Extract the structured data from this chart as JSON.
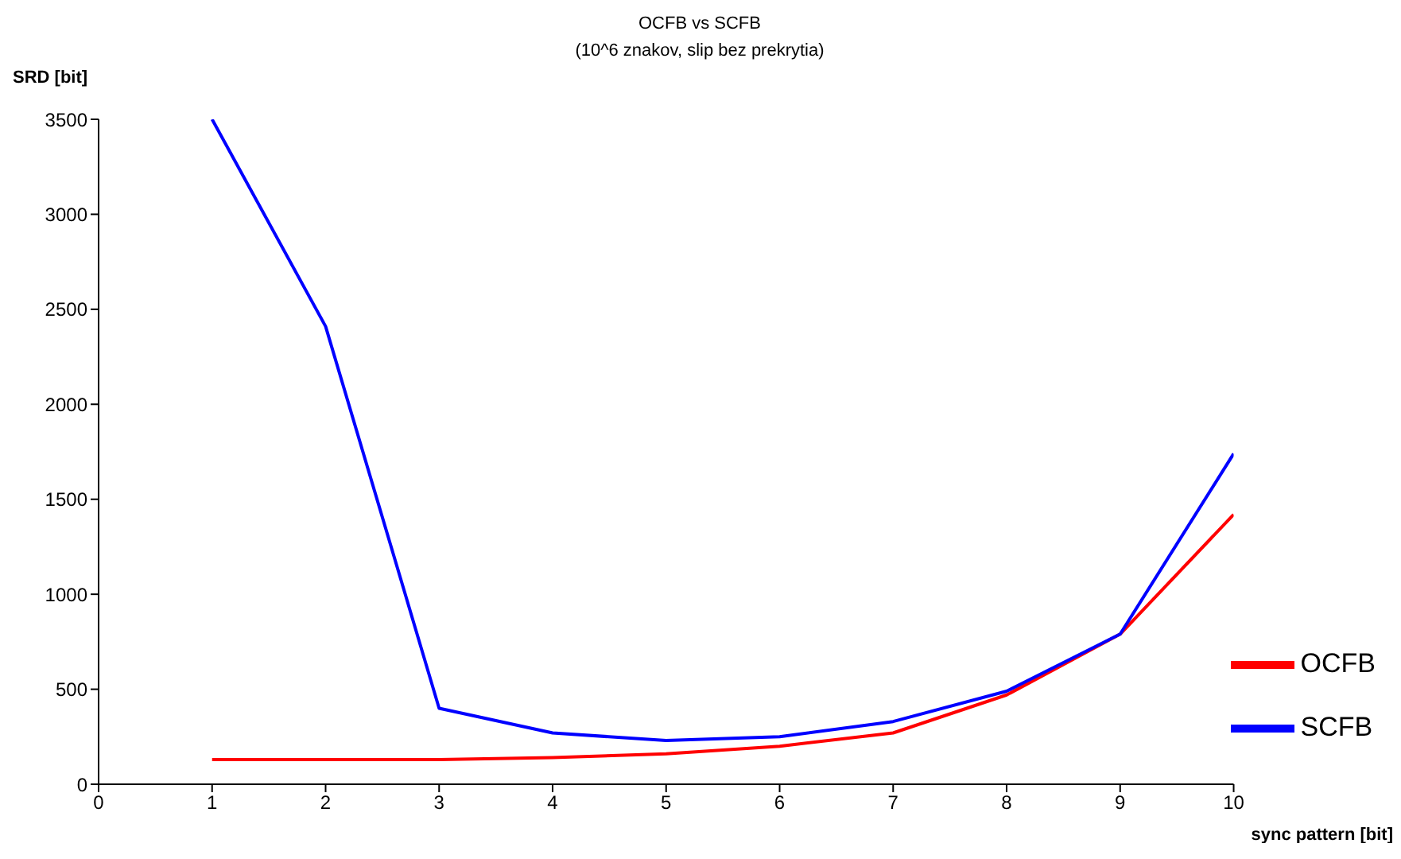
{
  "chart_data": {
    "type": "line",
    "title": "OCFB vs SCFB",
    "subtitle": "(10^6 znakov, slip bez prekrytia)",
    "xlabel": "sync pattern [bit]",
    "ylabel": "SRD [bit]",
    "x": [
      1,
      2,
      3,
      4,
      5,
      6,
      7,
      8,
      9,
      10
    ],
    "series": [
      {
        "name": "OCFB",
        "color": "#ff0000",
        "values": [
          130,
          130,
          130,
          140,
          160,
          200,
          270,
          470,
          790,
          1420
        ]
      },
      {
        "name": "SCFB",
        "color": "#0000ff",
        "values": [
          3500,
          2410,
          400,
          270,
          230,
          250,
          330,
          490,
          790,
          1740
        ]
      }
    ],
    "xlim": [
      0,
      10
    ],
    "xticks": [
      0,
      1,
      2,
      3,
      4,
      5,
      6,
      7,
      8,
      9,
      10
    ],
    "ylim": [
      0,
      3500
    ],
    "yticks": [
      0,
      500,
      1000,
      1500,
      2000,
      2500,
      3000,
      3500
    ],
    "grid": false,
    "legend": "bottom right",
    "marker": "none",
    "line_style": "solid"
  }
}
